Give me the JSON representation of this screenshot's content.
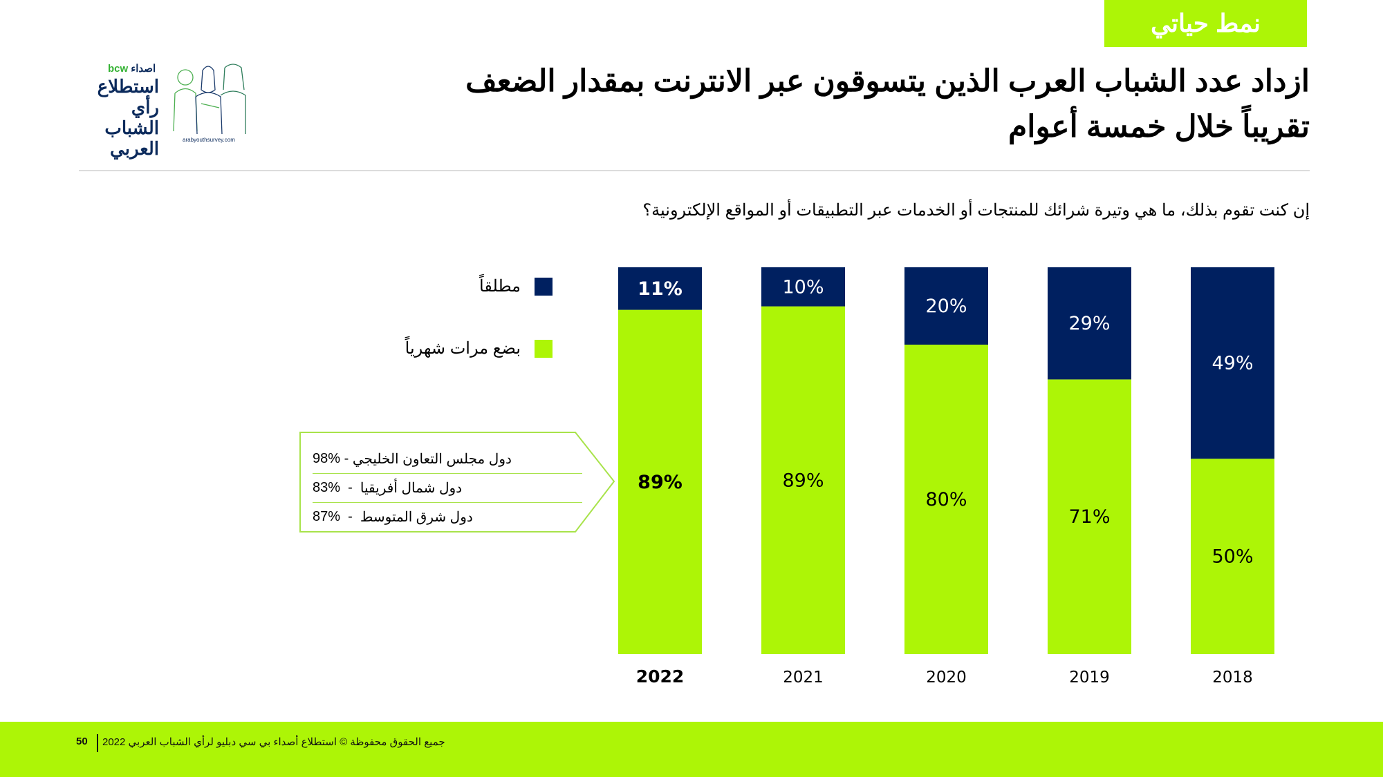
{
  "header": {
    "section_tag": "نمط حياتي",
    "title_line1": "ازداد عدد الشباب العرب الذين يتسوقون عبر الانترنت بمقدار الضعف",
    "title_line2": "تقريباً خلال خمسة أعوام",
    "question": "إن كنت تقوم بذلك، ما هي وتيرة شرائك للمنتجات أو الخدمات عبر التطبيقات أو المواقع الإلكترونية؟"
  },
  "logo": {
    "brand_ar": "اصداء",
    "brand_en": "bcw",
    "line1": "استطلاع",
    "line2": "رأي الشباب",
    "line3": "العربي",
    "url": "arabyouthsurvey.com"
  },
  "colors": {
    "accent_green": "#adf506",
    "navy": "#002060",
    "divider": "#dcdcdc"
  },
  "chart_data": {
    "type": "bar",
    "stacked": true,
    "orientation": "vertical",
    "categories": [
      "2022",
      "2021",
      "2020",
      "2019",
      "2018"
    ],
    "highlight_category": "2022",
    "series": [
      {
        "name": "بضع مرات شهرياً",
        "color": "#adf506",
        "values": [
          89,
          89,
          80,
          71,
          50
        ],
        "labels": [
          "89%",
          "89%",
          "80%",
          "71%",
          "50%"
        ]
      },
      {
        "name": "مطلقاً",
        "color": "#002060",
        "values": [
          11,
          10,
          20,
          29,
          49
        ],
        "labels": [
          "11%",
          "10%",
          "20%",
          "29%",
          "49%"
        ]
      }
    ],
    "ylim": [
      0,
      100
    ],
    "grid": false,
    "legend": "top-left",
    "title": "",
    "xlabel": "",
    "ylabel": ""
  },
  "legend": [
    {
      "label": "مطلقاً",
      "color": "#002060"
    },
    {
      "label": "بضع مرات شهرياً",
      "color": "#adf506"
    }
  ],
  "callout": {
    "rows": [
      {
        "region": "دول مجلس التعاون الخليجي",
        "value": "98%"
      },
      {
        "region": "دول شمال أفريقيا",
        "value": "83%"
      },
      {
        "region": "دول شرق المتوسط",
        "value": "87%"
      }
    ]
  },
  "footer": {
    "copyright": "جميع الحقوق محفوظة © استطلاع أصداء بي سي دبليو لرأي الشباب العربي 2022",
    "page_number": "50"
  }
}
